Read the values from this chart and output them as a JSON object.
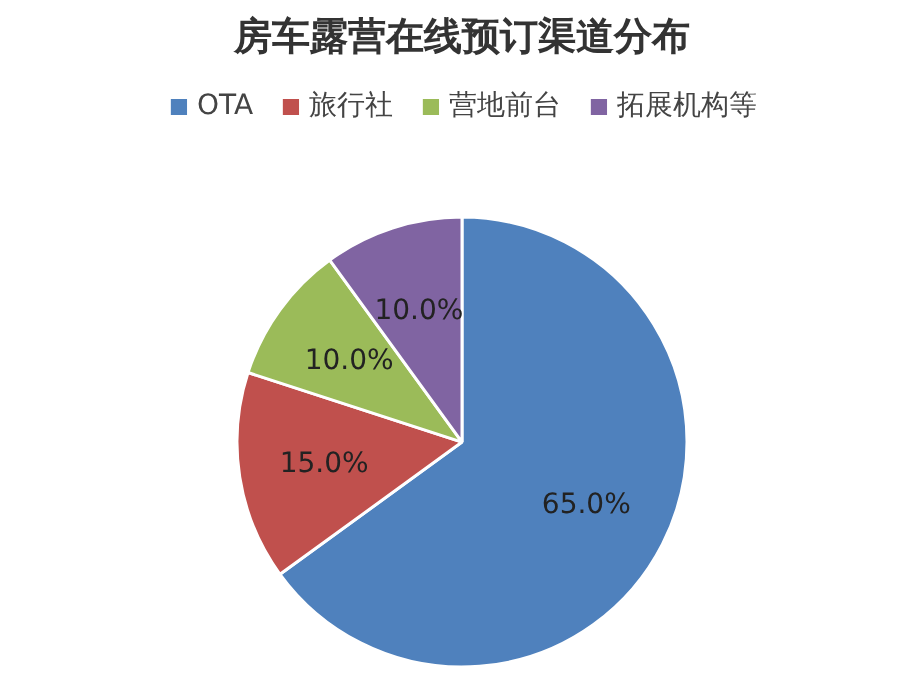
{
  "chart_data": {
    "type": "pie",
    "title": "房车露营在线预订渠道分布",
    "categories": [
      "OTA",
      "旅行社",
      "营地前台",
      "拓展机构等"
    ],
    "values": [
      65.0,
      15.0,
      10.0,
      10.0
    ],
    "colors": [
      "#4f81bd",
      "#c0504d",
      "#9bbb59",
      "#8064a2"
    ],
    "value_labels": [
      "65.0%",
      "15.0%",
      "10.0%",
      "10.0%"
    ],
    "legend": "top"
  }
}
